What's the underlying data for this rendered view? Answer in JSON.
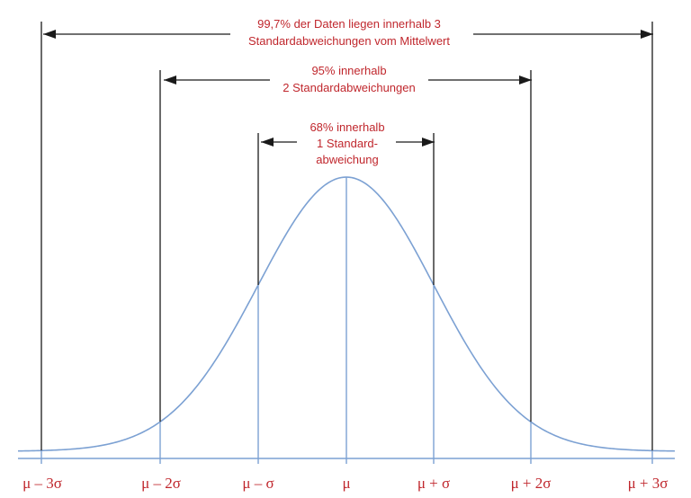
{
  "brackets": {
    "three_sigma": {
      "lines": [
        "99,7% der Daten liegen innerhalb 3",
        "Standardabweichungen vom Mittelwert"
      ]
    },
    "two_sigma": {
      "lines": [
        "95% innerhalb",
        "2 Standardabweichungen"
      ]
    },
    "one_sigma": {
      "lines": [
        "68% innerhalb",
        "1 Standard-",
        "abweichung"
      ]
    }
  },
  "axis": {
    "ticks": [
      {
        "sigma": -3,
        "label": "μ – 3σ"
      },
      {
        "sigma": -2,
        "label": "μ – 2σ"
      },
      {
        "sigma": -1,
        "label": "μ – σ"
      },
      {
        "sigma": 0,
        "label": "μ"
      },
      {
        "sigma": 1,
        "label": "μ + σ"
      },
      {
        "sigma": 2,
        "label": "μ + 2σ"
      },
      {
        "sigma": 3,
        "label": "μ + 3σ"
      }
    ]
  },
  "colors": {
    "curve": "#7ca1d3",
    "axis_line": "#7ca1d3",
    "bracket_line": "#1a1a1a",
    "text": "#c0272d"
  }
}
